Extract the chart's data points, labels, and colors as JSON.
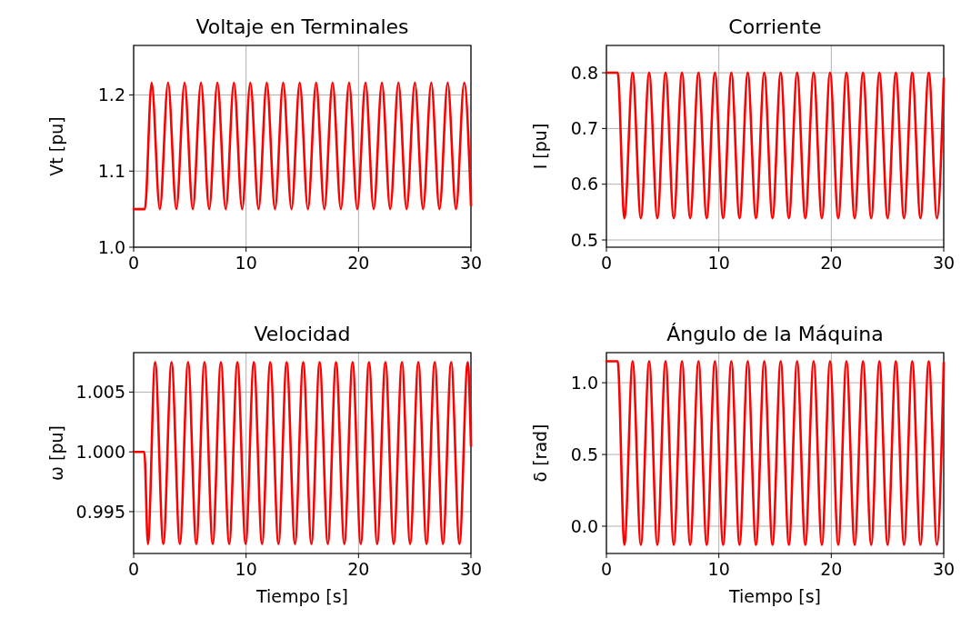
{
  "chart_data": [
    {
      "type": "line",
      "title": "Voltaje en Terminales",
      "ylabel": "Vt [pu]",
      "grid": true,
      "xlim": [
        0,
        30
      ],
      "ylim": [
        1.0,
        1.265
      ],
      "xticks": [
        0,
        10,
        20,
        30
      ],
      "yticks": [
        {
          "value": 1.0,
          "label": "1.0"
        },
        {
          "value": 1.1,
          "label": "1.1"
        },
        {
          "value": 1.2,
          "label": "1.2"
        }
      ],
      "series": [
        {
          "color": "#ff0000",
          "x": [
            0,
            1.0,
            1.6,
            2.33,
            3.06,
            3.8,
            4.53,
            5.26,
            5.99,
            6.72,
            7.45,
            8.19,
            8.92,
            9.65,
            10.38,
            11.11,
            11.84,
            12.57,
            13.3,
            14.04,
            14.77,
            15.5,
            16.23,
            16.96,
            17.69,
            18.43,
            19.16,
            19.89,
            20.62,
            21.35,
            22.08,
            22.82,
            23.55,
            24.28,
            25.01,
            25.74,
            26.47,
            27.2,
            27.93,
            28.67,
            29.4,
            30
          ],
          "values": [
            1.05,
            1.05,
            1.216,
            1.05,
            1.216,
            1.05,
            1.216,
            1.05,
            1.216,
            1.05,
            1.216,
            1.05,
            1.216,
            1.05,
            1.216,
            1.05,
            1.216,
            1.05,
            1.216,
            1.05,
            1.216,
            1.05,
            1.216,
            1.05,
            1.216,
            1.05,
            1.216,
            1.05,
            1.216,
            1.05,
            1.216,
            1.05,
            1.216,
            1.05,
            1.216,
            1.05,
            1.216,
            1.05,
            1.216,
            1.05,
            1.216,
            1.055
          ]
        }
      ]
    },
    {
      "type": "line",
      "title": "Corriente",
      "ylabel": "I [pu]",
      "grid": true,
      "xlim": [
        0,
        30
      ],
      "ylim": [
        0.487,
        0.849
      ],
      "xticks": [
        0,
        10,
        20,
        30
      ],
      "yticks": [
        0.5,
        0.6,
        0.7,
        0.8
      ],
      "series": [
        {
          "color": "#ff0000",
          "x": [
            0,
            1.0,
            1.6,
            2.33,
            3.06,
            3.8,
            4.53,
            5.26,
            5.99,
            6.72,
            7.45,
            8.19,
            8.92,
            9.65,
            10.38,
            11.11,
            11.84,
            12.57,
            13.3,
            14.04,
            14.77,
            15.5,
            16.23,
            16.96,
            17.69,
            18.43,
            19.16,
            19.89,
            20.62,
            21.35,
            22.08,
            22.82,
            23.55,
            24.28,
            25.01,
            25.74,
            26.47,
            27.2,
            27.93,
            28.67,
            29.4,
            30
          ],
          "values": [
            0.8,
            0.8,
            0.539,
            0.8,
            0.539,
            0.8,
            0.539,
            0.8,
            0.539,
            0.8,
            0.539,
            0.8,
            0.539,
            0.8,
            0.539,
            0.8,
            0.539,
            0.8,
            0.539,
            0.8,
            0.539,
            0.8,
            0.539,
            0.8,
            0.539,
            0.8,
            0.539,
            0.8,
            0.539,
            0.8,
            0.539,
            0.8,
            0.539,
            0.8,
            0.539,
            0.8,
            0.539,
            0.8,
            0.539,
            0.8,
            0.539,
            0.79
          ]
        }
      ]
    },
    {
      "type": "line",
      "title": "Velocidad",
      "xlabel": "Tiempo [s]",
      "ylabel": "ω [pu]",
      "grid": true,
      "xlim": [
        0,
        30
      ],
      "ylim": [
        0.9915,
        1.0083
      ],
      "xticks": [
        0,
        10,
        20,
        30
      ],
      "yticks": [
        0.995,
        {
          "value": 1.0,
          "label": "1.000"
        },
        1.005
      ],
      "series": [
        {
          "color": "#ff0000",
          "x": [
            0,
            0.95,
            1.27,
            1.91,
            2.64,
            3.37,
            4.11,
            4.84,
            5.57,
            6.3,
            7.03,
            7.76,
            8.5,
            9.23,
            9.96,
            10.69,
            11.42,
            12.15,
            12.88,
            13.61,
            14.35,
            15.08,
            15.81,
            16.54,
            17.27,
            18.0,
            18.74,
            19.47,
            20.2,
            20.93,
            21.66,
            22.39,
            23.13,
            23.86,
            24.59,
            25.32,
            26.05,
            26.78,
            27.51,
            28.24,
            28.98,
            29.71,
            30
          ],
          "values": [
            1.0,
            1.0,
            0.9923,
            1.0075,
            0.9923,
            1.0075,
            0.9923,
            1.0075,
            0.9923,
            1.0075,
            0.9923,
            1.0075,
            0.9923,
            1.0075,
            0.9923,
            1.0075,
            0.9923,
            1.0075,
            0.9923,
            1.0075,
            0.9923,
            1.0075,
            0.9923,
            1.0075,
            0.9923,
            1.0075,
            0.9923,
            1.0075,
            0.9923,
            1.0075,
            0.9923,
            1.0075,
            0.9923,
            1.0075,
            0.9923,
            1.0075,
            0.9923,
            1.0075,
            0.9923,
            1.0075,
            0.9923,
            1.0075,
            1.0005
          ]
        }
      ]
    },
    {
      "type": "line",
      "title": "Ángulo de la Máquina",
      "xlabel": "Tiempo [s]",
      "ylabel": "δ [rad]",
      "grid": true,
      "xlim": [
        0,
        30
      ],
      "ylim": [
        -0.19,
        1.21
      ],
      "xticks": [
        0,
        10,
        20,
        30
      ],
      "yticks": [
        {
          "value": 0,
          "label": "0.0"
        },
        0.5,
        {
          "value": 1,
          "label": "1.0"
        }
      ],
      "series": [
        {
          "color": "#ff0000",
          "x": [
            0,
            1.0,
            1.6,
            2.33,
            3.06,
            3.8,
            4.53,
            5.26,
            5.99,
            6.72,
            7.45,
            8.19,
            8.92,
            9.65,
            10.38,
            11.11,
            11.84,
            12.57,
            13.3,
            14.04,
            14.77,
            15.5,
            16.23,
            16.96,
            17.69,
            18.43,
            19.16,
            19.89,
            20.62,
            21.35,
            22.08,
            22.82,
            23.55,
            24.28,
            25.01,
            25.74,
            26.47,
            27.2,
            27.93,
            28.67,
            29.4,
            30
          ],
          "values": [
            1.15,
            1.15,
            -0.13,
            1.15,
            -0.13,
            1.15,
            -0.13,
            1.15,
            -0.13,
            1.15,
            -0.13,
            1.15,
            -0.13,
            1.15,
            -0.13,
            1.15,
            -0.13,
            1.15,
            -0.13,
            1.15,
            -0.13,
            1.15,
            -0.13,
            1.15,
            -0.13,
            1.15,
            -0.13,
            1.15,
            -0.13,
            1.15,
            -0.13,
            1.15,
            -0.13,
            1.15,
            -0.13,
            1.15,
            -0.13,
            1.15,
            -0.13,
            1.15,
            -0.13,
            1.14
          ]
        }
      ]
    }
  ]
}
